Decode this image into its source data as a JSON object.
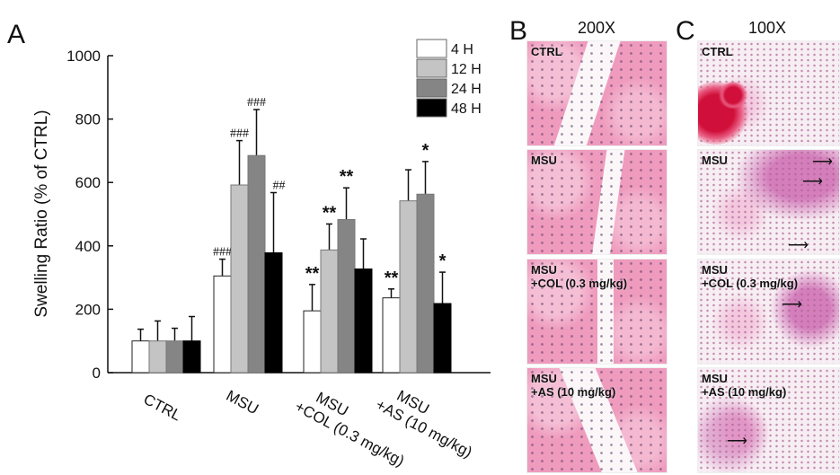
{
  "figure": {
    "panels": {
      "A": {
        "letter": "A"
      },
      "B": {
        "letter": "B",
        "magnification": "200X"
      },
      "C": {
        "letter": "C",
        "magnification": "100X"
      }
    }
  },
  "chart_data": {
    "type": "bar",
    "title": "",
    "xlabel": "",
    "ylabel": "Swelling Ratio (% of CTRL)",
    "ylim": [
      0,
      1000
    ],
    "yticks": [
      0,
      200,
      400,
      600,
      800,
      1000
    ],
    "grid": false,
    "legend_position": "top-right",
    "categories": [
      "CTRL",
      "MSU",
      "MSU\n+COL (0.3 mg/kg)",
      "MSU\n+AS (10 mg/kg)"
    ],
    "series": [
      {
        "name": "4 H",
        "color": "#ffffff",
        "values": [
          100,
          305,
          195,
          236
        ],
        "error_upper": [
          137,
          358,
          278,
          264
        ],
        "annotations": [
          "",
          "###",
          "**",
          "**"
        ]
      },
      {
        "name": "12 H",
        "color": "#c4c4c4",
        "values": [
          100,
          592,
          387,
          542
        ],
        "error_upper": [
          163,
          732,
          469,
          640
        ],
        "annotations": [
          "",
          "###",
          "**",
          ""
        ]
      },
      {
        "name": "24 H",
        "color": "#858585",
        "values": [
          100,
          685,
          483,
          563
        ],
        "error_upper": [
          140,
          830,
          583,
          666
        ],
        "annotations": [
          "",
          "###",
          "**",
          "*"
        ]
      },
      {
        "name": "48 H",
        "color": "#000000",
        "values": [
          100,
          378,
          327,
          218
        ],
        "error_upper": [
          177,
          568,
          422,
          317
        ],
        "annotations": [
          "",
          "##",
          "",
          "*"
        ]
      }
    ]
  },
  "histology": {
    "B": [
      {
        "label": "CTRL"
      },
      {
        "label": "MSU"
      },
      {
        "label": "MSU\n+COL (0.3 mg/kg)"
      },
      {
        "label": "MSU\n+AS (10 mg/kg)"
      }
    ],
    "C": [
      {
        "label": "CTRL",
        "arrows": 0
      },
      {
        "label": "MSU",
        "arrows": 3
      },
      {
        "label": "MSU\n+COL (0.3 mg/kg)",
        "arrows": 1
      },
      {
        "label": "MSU\n+AS (10 mg/kg)",
        "arrows": 1
      }
    ]
  },
  "glyphs": {
    "arrow": "⟶"
  }
}
